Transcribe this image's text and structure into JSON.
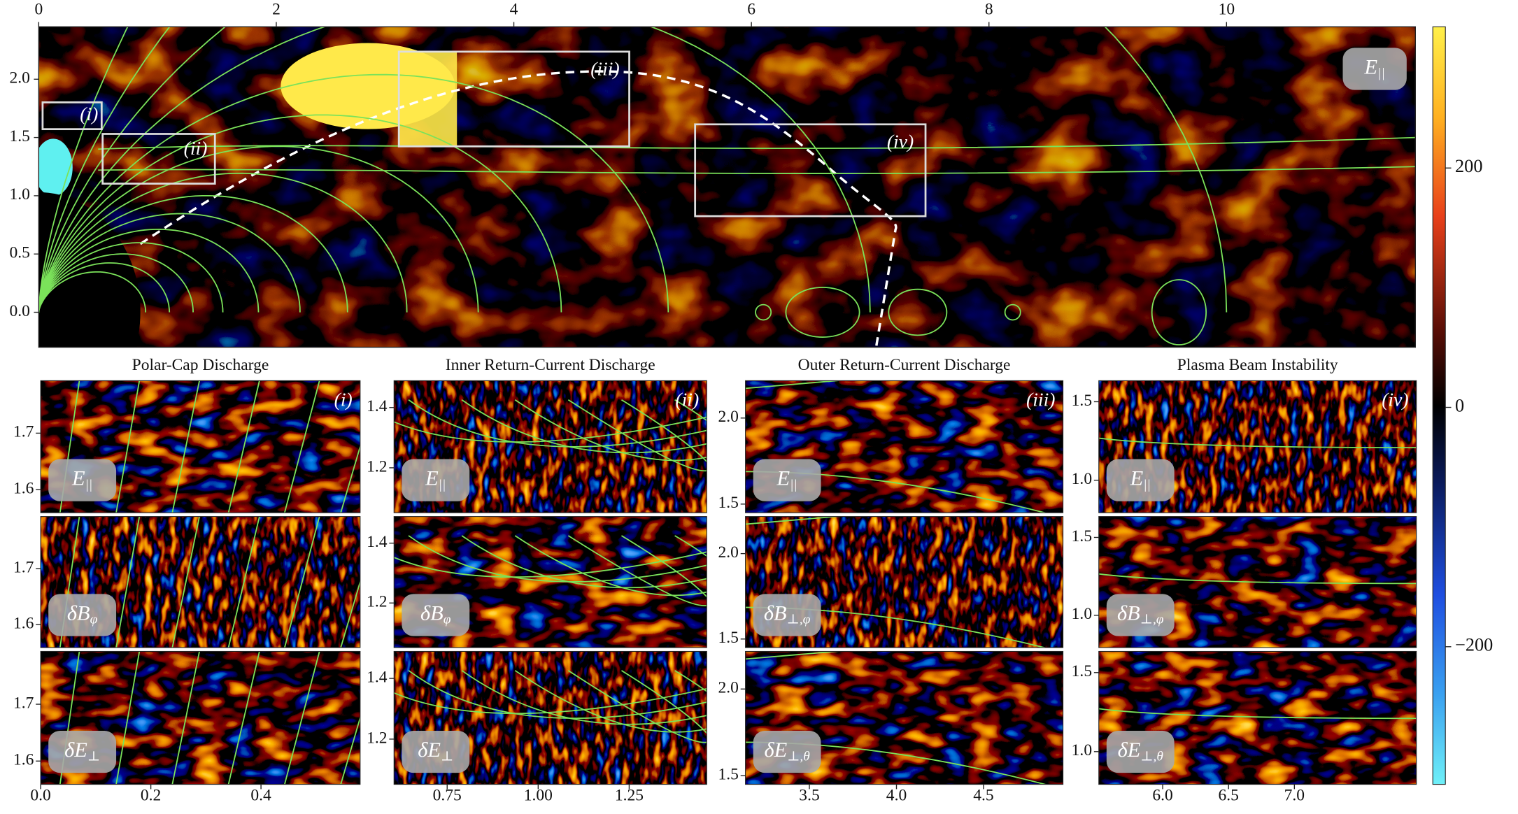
{
  "main_panel": {
    "field": {
      "base": "E",
      "sub": "||"
    },
    "xlim": [
      0,
      11.59
    ],
    "ylim": [
      -0.3,
      2.45
    ],
    "xticks": [
      0,
      2,
      4,
      6,
      8,
      10
    ],
    "yticks": [
      {
        "value": 0,
        "label": "0.0"
      },
      0.5,
      {
        "value": 1,
        "label": "1.0"
      },
      1.5,
      {
        "value": 2,
        "label": "2.0"
      }
    ],
    "regions": [
      "(i)",
      "(ii)",
      "(iii)",
      "(iv)"
    ]
  },
  "colorbar": {
    "lim": [
      -315,
      318
    ],
    "ticks": [
      {
        "value": -200,
        "label": "−200"
      },
      0,
      200
    ]
  },
  "panels": [
    {
      "title": "Polar-Cap Discharge",
      "tag": "(i)",
      "xlim": [
        0,
        0.58
      ],
      "ylim": [
        1.559,
        1.793
      ],
      "xticks": [
        {
          "value": 0,
          "label": "0.0"
        },
        0.2,
        0.4
      ],
      "yticks": [
        1.6,
        1.7
      ],
      "fields": [
        {
          "base": "E",
          "sub": "||"
        },
        {
          "base": "δB",
          "sub": "φ"
        },
        {
          "base": "δE",
          "sub": "⊥"
        }
      ]
    },
    {
      "title": "Inner Return-Current Discharge",
      "tag": "(ii)",
      "xlim": [
        0.604,
        1.463
      ],
      "ylim": [
        1.051,
        1.489
      ],
      "xticks": [
        0.75,
        {
          "value": 1,
          "label": "1.00"
        },
        1.25
      ],
      "yticks": [
        1.2,
        1.4
      ],
      "fields": [
        {
          "base": "E",
          "sub": "||"
        },
        {
          "base": "δB",
          "sub": "φ"
        },
        {
          "base": "δE",
          "sub": "⊥"
        }
      ]
    },
    {
      "title": "Outer Return-Current Discharge",
      "tag": "(iii)",
      "xlim": [
        3.133,
        4.956
      ],
      "ylim": [
        1.45,
        2.217
      ],
      "xticks": [
        3.5,
        {
          "value": 4,
          "label": "4.0"
        },
        4.5
      ],
      "yticks": [
        1.5,
        {
          "value": 2,
          "label": "2.0"
        }
      ],
      "fields": [
        {
          "base": "E",
          "sub": "||"
        },
        {
          "base": "δB",
          "sub": "⊥,φ"
        },
        {
          "base": "δE",
          "sub": "⊥,θ"
        }
      ]
    },
    {
      "title": "Plasma Beam Instability",
      "tag": "(iv)",
      "xlim": [
        5.515,
        7.926
      ],
      "ylim": [
        0.793,
        1.634
      ],
      "xticks": [
        {
          "value": 6,
          "label": "6.0"
        },
        6.5,
        {
          "value": 7,
          "label": "7.0"
        }
      ],
      "yticks": [
        {
          "value": 1,
          "label": "1.0"
        },
        1.5
      ],
      "fields": [
        {
          "base": "E",
          "sub": "||"
        },
        {
          "base": "δB",
          "sub": "⊥,φ"
        },
        {
          "base": "δE",
          "sub": "⊥,θ"
        }
      ]
    }
  ]
}
